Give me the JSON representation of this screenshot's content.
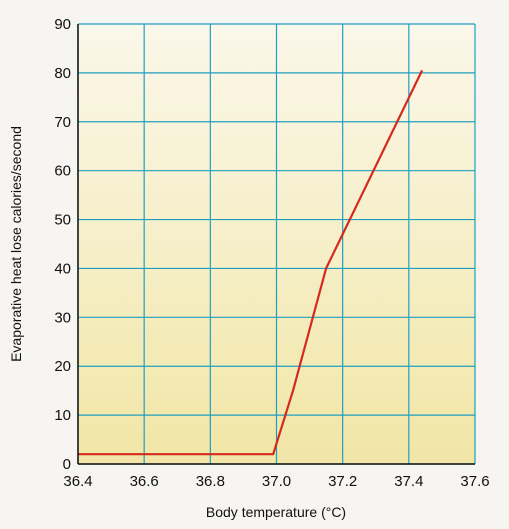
{
  "chart_data": {
    "type": "line",
    "xlabel": "Body temperature (°C)",
    "ylabel": "Evaporative heat lose calories/second",
    "xlim": [
      36.4,
      37.6
    ],
    "ylim": [
      0,
      90
    ],
    "x_ticks": [
      "36.4",
      "36.6",
      "36.8",
      "37.0",
      "37.2",
      "37.4",
      "37.6"
    ],
    "y_ticks": [
      "0",
      "10",
      "20",
      "30",
      "40",
      "50",
      "60",
      "70",
      "80",
      "90"
    ],
    "grid": true,
    "series": [
      {
        "color": "#d42a1e",
        "points": [
          {
            "x": 36.4,
            "y": 2
          },
          {
            "x": 36.99,
            "y": 2
          },
          {
            "x": 37.05,
            "y": 15
          },
          {
            "x": 37.15,
            "y": 40
          },
          {
            "x": 37.44,
            "y": 80.5
          }
        ]
      }
    ],
    "colors": {
      "grid": "#1f9fbf",
      "axis": "#111111",
      "background_top": "#fbf7ea",
      "background_bottom": "#f1e6a6"
    }
  }
}
